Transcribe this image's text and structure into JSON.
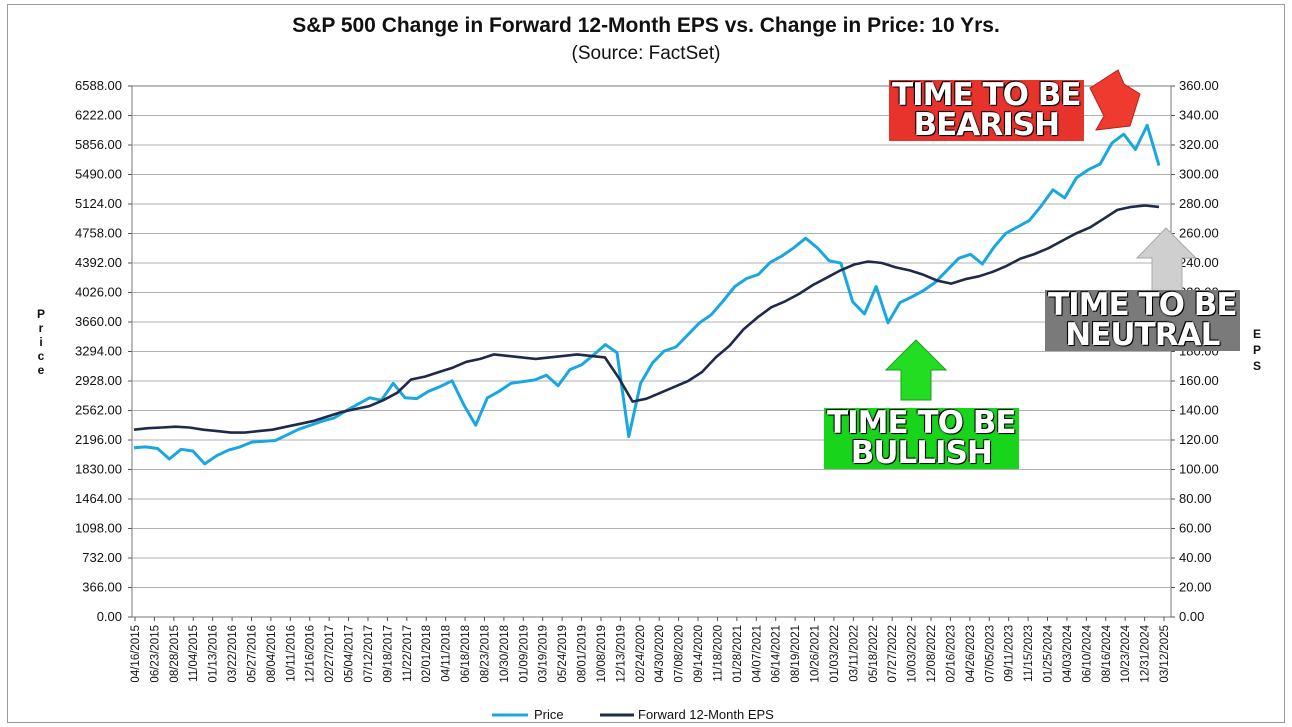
{
  "chart_data": {
    "type": "line",
    "title": "S&P 500 Change in Forward 12-Month EPS vs. Change in Price: 10 Yrs.",
    "subtitle": "(Source: FactSet)",
    "ylabel_left": "Price",
    "ylabel_right": "EPS",
    "ylim_left": [
      0,
      6588
    ],
    "ylim_right": [
      0,
      360
    ],
    "left_ticks": [
      "0.00",
      "366.00",
      "732.00",
      "1098.00",
      "1464.00",
      "1830.00",
      "2196.00",
      "2562.00",
      "2928.00",
      "3294.00",
      "3660.00",
      "4026.00",
      "4392.00",
      "4758.00",
      "5124.00",
      "5490.00",
      "5856.00",
      "6222.00",
      "6588.00"
    ],
    "right_ticks": [
      "0.00",
      "20.00",
      "40.00",
      "60.00",
      "80.00",
      "100.00",
      "120.00",
      "140.00",
      "160.00",
      "180.00",
      "200.00",
      "220.00",
      "240.00",
      "260.00",
      "280.00",
      "300.00",
      "320.00",
      "340.00",
      "360.00"
    ],
    "x_ticks": [
      "04/16/2015",
      "06/23/2015",
      "08/28/2015",
      "11/04/2015",
      "01/13/2016",
      "03/22/2016",
      "05/27/2016",
      "08/04/2016",
      "10/11/2016",
      "12/16/2016",
      "02/27/2017",
      "05/04/2017",
      "07/12/2017",
      "09/18/2017",
      "11/22/2017",
      "02/01/2018",
      "04/11/2018",
      "06/18/2018",
      "08/23/2018",
      "10/30/2018",
      "01/09/2019",
      "03/19/2019",
      "05/24/2019",
      "08/01/2019",
      "10/08/2019",
      "12/13/2019",
      "02/24/2020",
      "04/30/2020",
      "07/08/2020",
      "09/14/2020",
      "11/18/2020",
      "01/28/2021",
      "04/07/2021",
      "06/14/2021",
      "08/19/2021",
      "10/26/2021",
      "01/03/2022",
      "03/11/2022",
      "05/18/2022",
      "07/27/2022",
      "10/03/2022",
      "12/08/2022",
      "02/16/2023",
      "04/26/2023",
      "07/05/2023",
      "09/11/2023",
      "11/15/2023",
      "01/25/2024",
      "04/03/2024",
      "06/10/2024",
      "08/16/2024",
      "10/23/2024",
      "12/31/2024",
      "03/12/2025"
    ],
    "series": [
      {
        "name": "Price",
        "color": "#1aa7e0",
        "axis": "left",
        "values": [
          2100,
          2110,
          2090,
          1960,
          2080,
          2060,
          1900,
          2000,
          2070,
          2110,
          2170,
          2180,
          2190,
          2260,
          2330,
          2380,
          2430,
          2470,
          2560,
          2640,
          2720,
          2690,
          2900,
          2720,
          2710,
          2800,
          2860,
          2930,
          2630,
          2380,
          2720,
          2800,
          2900,
          2920,
          2940,
          3000,
          2870,
          3070,
          3130,
          3250,
          3380,
          3280,
          2240,
          2900,
          3150,
          3300,
          3350,
          3500,
          3650,
          3750,
          3920,
          4100,
          4200,
          4250,
          4400,
          4480,
          4580,
          4700,
          4580,
          4420,
          4390,
          3910,
          3760,
          4100,
          3650,
          3900,
          3970,
          4050,
          4150,
          4300,
          4450,
          4500,
          4380,
          4590,
          4760,
          4840,
          4920,
          5100,
          5300,
          5200,
          5450,
          5550,
          5620,
          5880,
          5990,
          5800,
          6100,
          5600
        ]
      },
      {
        "name": "Forward 12-Month EPS",
        "color": "#1f2a4a",
        "axis": "right",
        "values": [
          127,
          128,
          128.5,
          129,
          128.5,
          127,
          126,
          125,
          125,
          126,
          127,
          129,
          131,
          133,
          136,
          139,
          141,
          143,
          147,
          152,
          161,
          163,
          166,
          169,
          173,
          175,
          178,
          177,
          176,
          175,
          176,
          177,
          178,
          177,
          176,
          162,
          146,
          148,
          152,
          156,
          160,
          166,
          176,
          184,
          195,
          203,
          210,
          214,
          219,
          225,
          230,
          235,
          239,
          241,
          240,
          237,
          235,
          232,
          228,
          226,
          229,
          231,
          234,
          238,
          243,
          246,
          250,
          255,
          260,
          264,
          270,
          276,
          278,
          279,
          278
        ]
      }
    ],
    "annotations": [
      {
        "lines": [
          "TIME TO BE",
          "BEARISH"
        ],
        "color": "#e8332d"
      },
      {
        "lines": [
          "TIME TO BE",
          "BULLISH"
        ],
        "color": "#18d41b"
      },
      {
        "lines": [
          "TIME TO BE",
          "NEUTRAL"
        ],
        "color": "#8c8c8c"
      }
    ],
    "legend": [
      "Price",
      "Forward 12-Month EPS"
    ]
  }
}
